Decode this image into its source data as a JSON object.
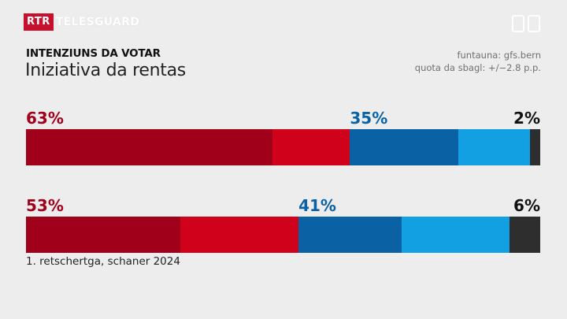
{
  "header": {
    "logo_rtr": "RTR",
    "logo_name": "TELESGUARD"
  },
  "titles": {
    "kicker": "INTENZIUNS DA VOTAR",
    "title": "Iniziativa da rentas"
  },
  "source": {
    "line1": "funtauna: gfs.bern",
    "line2": "quota da sbagl: +/−2.8 p.p."
  },
  "colors": {
    "yes_dark": "#a1001a",
    "yes_light": "#d0021b",
    "no_dark": "#0a62a5",
    "no_light": "#12a0e3",
    "undecided": "#2e2e2e",
    "yes_label": "#a1001a",
    "no_label": "#0a62a5",
    "undecided_label": "#111111"
  },
  "chart_data": {
    "type": "bar",
    "orientation": "horizontal-stacked",
    "legend": "none",
    "grid": false,
    "rows": [
      {
        "labels": {
          "yes": "63%",
          "no": "35%",
          "undecided": "2%"
        },
        "segments": [
          {
            "key": "yes_dark",
            "value": 48
          },
          {
            "key": "yes_light",
            "value": 15
          },
          {
            "key": "no_dark",
            "value": 21
          },
          {
            "key": "no_light",
            "value": 14
          },
          {
            "key": "undecided",
            "value": 2
          }
        ],
        "note": ""
      },
      {
        "labels": {
          "yes": "53%",
          "no": "41%",
          "undecided": "6%"
        },
        "segments": [
          {
            "key": "yes_dark",
            "value": 30
          },
          {
            "key": "yes_light",
            "value": 23
          },
          {
            "key": "no_dark",
            "value": 20
          },
          {
            "key": "no_light",
            "value": 21
          },
          {
            "key": "undecided",
            "value": 6
          }
        ],
        "note": "1. retschertga, schaner 2024"
      }
    ]
  }
}
